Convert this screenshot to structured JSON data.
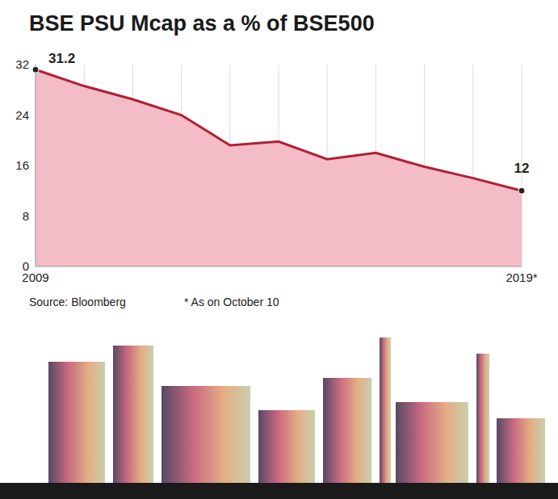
{
  "chart_data": {
    "type": "area",
    "title": "BSE PSU Mcap as a % of BSE500",
    "categories": [
      "2009",
      null,
      null,
      null,
      null,
      null,
      null,
      null,
      null,
      null,
      "2019*"
    ],
    "values": [
      31.2,
      28.6,
      26.5,
      24.0,
      19.2,
      19.8,
      17.0,
      18.0,
      15.8,
      14.0,
      12
    ],
    "value_labels": [
      "31.2",
      null,
      null,
      null,
      null,
      null,
      null,
      null,
      null,
      null,
      "12"
    ],
    "color": "#b11f36",
    "ylim": [
      0,
      32
    ],
    "yticks": [
      0,
      8,
      16,
      24,
      32
    ],
    "grid": true,
    "marker": "circle",
    "source": "Source: Bloomberg",
    "note": "* As on October 10"
  }
}
